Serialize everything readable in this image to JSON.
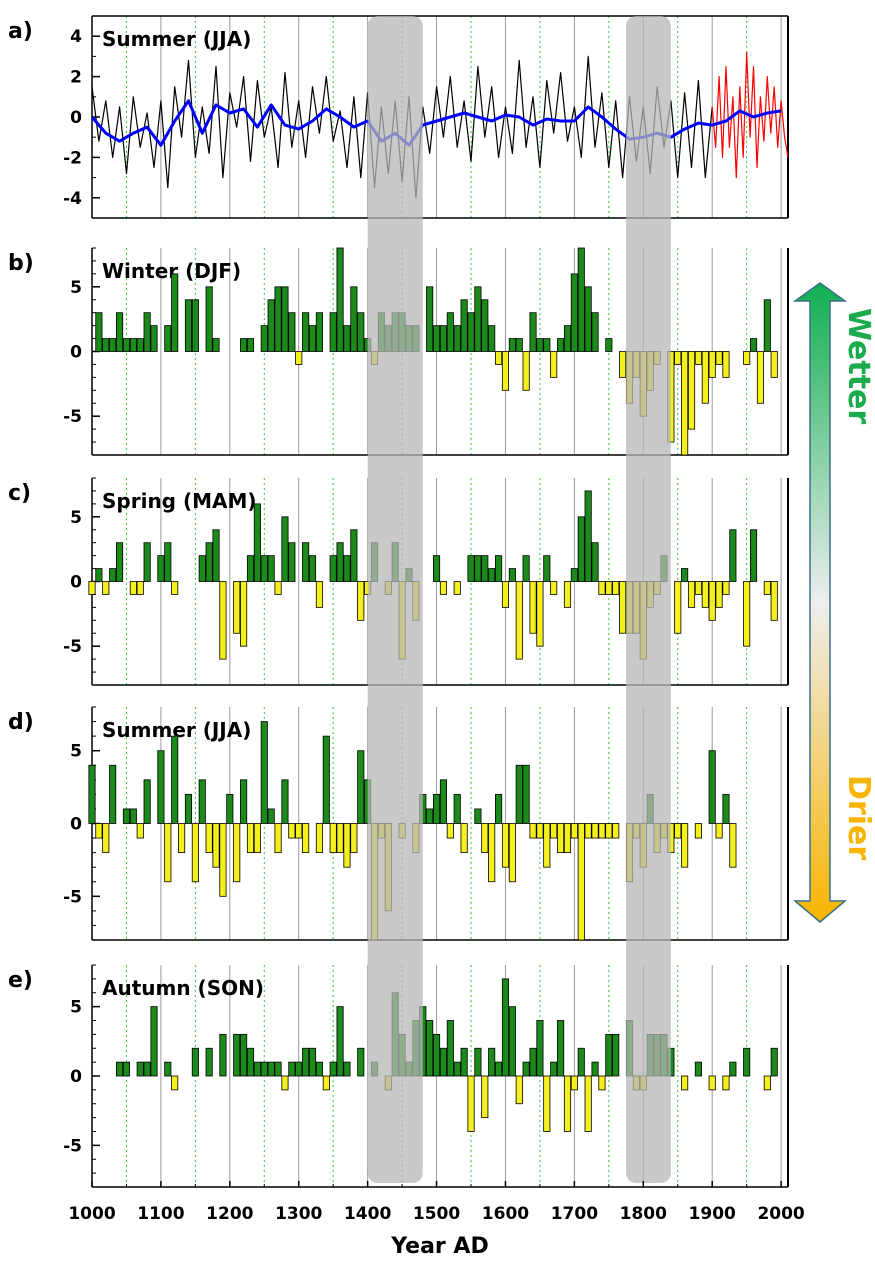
{
  "chart_data": [
    {
      "panel": "a)",
      "title": "Summer (JJA)",
      "type": "line",
      "ylim": [
        -5,
        5
      ],
      "yticks": [
        4,
        2,
        0,
        -2,
        -4
      ],
      "series": [
        {
          "color": "#000000",
          "x": [
            1000,
            1010,
            1020,
            1030,
            1040,
            1050,
            1060,
            1070,
            1080,
            1090,
            1100,
            1110,
            1120,
            1130,
            1140,
            1150,
            1160,
            1170,
            1180,
            1190,
            1200,
            1210,
            1220,
            1230,
            1240,
            1250,
            1260,
            1270,
            1280,
            1290,
            1300,
            1310,
            1320,
            1330,
            1340,
            1350,
            1360,
            1370,
            1380,
            1390,
            1400,
            1410,
            1420,
            1430,
            1440,
            1450,
            1460,
            1470,
            1480,
            1490,
            1500,
            1510,
            1520,
            1530,
            1540,
            1550,
            1560,
            1570,
            1580,
            1590,
            1600,
            1610,
            1620,
            1630,
            1640,
            1650,
            1660,
            1670,
            1680,
            1690,
            1700,
            1710,
            1720,
            1730,
            1740,
            1750,
            1760,
            1770,
            1780,
            1790,
            1800,
            1810,
            1820,
            1830,
            1840,
            1850,
            1860,
            1870,
            1880,
            1890,
            1900
          ],
          "y": [
            1.5,
            -1.2,
            0.8,
            -2.0,
            0.5,
            -2.8,
            1.0,
            -1.5,
            0.2,
            -2.5,
            0.8,
            -3.5,
            1.5,
            -1.0,
            2.8,
            -2.0,
            0.5,
            -1.8,
            2.5,
            -3.0,
            1.2,
            -0.5,
            2.0,
            -2.2,
            1.8,
            -1.0,
            0.5,
            -2.5,
            2.2,
            -1.5,
            0.8,
            -2.0,
            1.5,
            -0.8,
            2.0,
            -1.2,
            0.3,
            -2.5,
            1.0,
            -3.0,
            1.2,
            -3.5,
            0.5,
            -2.8,
            0.8,
            -3.2,
            1.0,
            -4.0,
            0.5,
            -1.8,
            1.5,
            -1.0,
            2.0,
            -1.5,
            0.8,
            -2.2,
            2.5,
            -1.0,
            1.5,
            -2.0,
            0.5,
            -1.8,
            2.8,
            -1.5,
            1.0,
            -2.5,
            1.8,
            -0.8,
            2.2,
            -1.2,
            0.5,
            -2.0,
            3.0,
            -1.5,
            1.2,
            -2.5,
            0.8,
            -3.0,
            1.0,
            -2.2,
            0.5,
            -2.8,
            1.5,
            -1.5,
            0.8,
            -3.0,
            1.2,
            -2.5,
            1.8,
            -3.0,
            0.5
          ]
        },
        {
          "color": "#ff0000",
          "x": [
            1900,
            1905,
            1910,
            1915,
            1920,
            1925,
            1930,
            1935,
            1940,
            1945,
            1950,
            1955,
            1960,
            1965,
            1970,
            1975,
            1980,
            1985,
            1990,
            1995,
            2000,
            2005,
            2010
          ],
          "y": [
            0.5,
            -1.5,
            2.0,
            -2.0,
            2.5,
            -1.5,
            1.0,
            -3.0,
            1.5,
            -2.0,
            3.2,
            -1.0,
            2.5,
            -2.5,
            1.0,
            -1.2,
            2.0,
            -0.8,
            1.5,
            -1.5,
            0.8,
            -1.0,
            -2.0
          ]
        },
        {
          "color": "#0000ff",
          "x": [
            1000,
            1020,
            1040,
            1060,
            1080,
            1100,
            1120,
            1140,
            1160,
            1180,
            1200,
            1220,
            1240,
            1260,
            1280,
            1300,
            1320,
            1340,
            1360,
            1380,
            1400,
            1420,
            1440,
            1460,
            1480,
            1500,
            1520,
            1540,
            1560,
            1580,
            1600,
            1620,
            1640,
            1660,
            1680,
            1700,
            1720,
            1740,
            1760,
            1780,
            1800,
            1820,
            1840,
            1860,
            1880,
            1900,
            1920,
            1940,
            1960,
            1980,
            2000
          ],
          "y": [
            0,
            -0.8,
            -1.2,
            -0.8,
            -0.5,
            -1.4,
            -0.2,
            0.8,
            -0.8,
            0.6,
            0.2,
            0.4,
            -0.5,
            0.6,
            -0.4,
            -0.6,
            -0.2,
            0.4,
            0,
            -0.5,
            -0.2,
            -1.2,
            -0.8,
            -1.4,
            -0.4,
            -0.2,
            0,
            0.2,
            0,
            -0.2,
            0.1,
            0,
            -0.4,
            -0.1,
            -0.2,
            -0.2,
            0.5,
            0,
            -0.6,
            -1.1,
            -1.0,
            -0.8,
            -1.0,
            -0.6,
            -0.3,
            -0.4,
            -0.2,
            0.3,
            0.0,
            0.2,
            0.3
          ]
        }
      ]
    },
    {
      "panel": "b)",
      "title": "Winter (DJF)",
      "type": "bar",
      "ylim": [
        -8,
        8
      ],
      "yticks": [
        5,
        0,
        -5
      ],
      "x": [
        1010,
        1020,
        1030,
        1040,
        1050,
        1060,
        1070,
        1080,
        1090,
        1100,
        1110,
        1120,
        1130,
        1140,
        1150,
        1160,
        1170,
        1180,
        1190,
        1200,
        1210,
        1220,
        1230,
        1240,
        1250,
        1260,
        1270,
        1280,
        1290,
        1300,
        1310,
        1320,
        1330,
        1340,
        1350,
        1360,
        1370,
        1380,
        1390,
        1400,
        1410,
        1420,
        1430,
        1440,
        1450,
        1460,
        1470,
        1480,
        1490,
        1500,
        1510,
        1520,
        1530,
        1540,
        1550,
        1560,
        1570,
        1580,
        1590,
        1600,
        1610,
        1620,
        1630,
        1640,
        1650,
        1660,
        1670,
        1680,
        1690,
        1700,
        1710,
        1720,
        1730,
        1740,
        1750,
        1760,
        1770,
        1780,
        1790,
        1800,
        1810,
        1820,
        1830,
        1840,
        1850,
        1860,
        1870,
        1880,
        1890,
        1900,
        1910,
        1920,
        1930,
        1940,
        1950,
        1960,
        1970,
        1980,
        1990
      ],
      "values": [
        3,
        1,
        1,
        3,
        1,
        1,
        1,
        3,
        2,
        0,
        2,
        6,
        0,
        4,
        4,
        0,
        5,
        1,
        0,
        0,
        0,
        1,
        1,
        0,
        2,
        4,
        5,
        5,
        3,
        -1,
        3,
        2,
        3,
        0,
        3,
        8,
        2,
        5,
        3,
        1,
        -1,
        3,
        2,
        3,
        3,
        2,
        2,
        0,
        5,
        2,
        2,
        3,
        2,
        4,
        3,
        5,
        4,
        2,
        -1,
        -3,
        1,
        1,
        -3,
        3,
        1,
        1,
        -2,
        1,
        2,
        6,
        8,
        5,
        3,
        0,
        1,
        0,
        -2,
        -4,
        -2,
        -5,
        -3,
        -1,
        0,
        -7,
        -1,
        -8,
        -6,
        -1,
        -4,
        -2,
        -1,
        -2,
        0,
        0,
        -1,
        1,
        -4,
        4,
        -2
      ]
    },
    {
      "panel": "c)",
      "title": "Spring (MAM)",
      "type": "bar",
      "ylim": [
        -8,
        8
      ],
      "yticks": [
        5,
        0,
        -5
      ],
      "x": [
        1000,
        1010,
        1020,
        1030,
        1040,
        1050,
        1060,
        1070,
        1080,
        1090,
        1100,
        1110,
        1120,
        1130,
        1140,
        1150,
        1160,
        1170,
        1180,
        1190,
        1200,
        1210,
        1220,
        1230,
        1240,
        1250,
        1260,
        1270,
        1280,
        1290,
        1300,
        1310,
        1320,
        1330,
        1340,
        1350,
        1360,
        1370,
        1380,
        1390,
        1400,
        1410,
        1420,
        1430,
        1440,
        1450,
        1460,
        1470,
        1480,
        1490,
        1500,
        1510,
        1520,
        1530,
        1540,
        1550,
        1560,
        1570,
        1580,
        1590,
        1600,
        1610,
        1620,
        1630,
        1640,
        1650,
        1660,
        1670,
        1680,
        1690,
        1700,
        1710,
        1720,
        1730,
        1740,
        1750,
        1760,
        1770,
        1780,
        1790,
        1800,
        1810,
        1820,
        1830,
        1840,
        1850,
        1860,
        1870,
        1880,
        1890,
        1900,
        1910,
        1920,
        1930,
        1940,
        1950,
        1960,
        1970,
        1980,
        1990
      ],
      "values": [
        -1,
        1,
        -1,
        1,
        3,
        0,
        -1,
        -1,
        3,
        0,
        2,
        3,
        -1,
        0,
        0,
        0,
        2,
        3,
        4,
        -6,
        0,
        -4,
        -5,
        2,
        6,
        2,
        2,
        -1,
        5,
        3,
        0,
        3,
        2,
        -2,
        0,
        2,
        3,
        2,
        4,
        -3,
        -1,
        3,
        0,
        -1,
        3,
        -6,
        1,
        -3,
        0,
        0,
        2,
        -1,
        0,
        -1,
        0,
        2,
        2,
        2,
        1,
        2,
        -2,
        1,
        -6,
        2,
        -4,
        -5,
        2,
        -1,
        0,
        -2,
        1,
        5,
        7,
        3,
        -1,
        -1,
        -1,
        -4,
        -4,
        -4,
        -6,
        -2,
        -1,
        2,
        0,
        -4,
        1,
        -2,
        -1,
        -2,
        -3,
        -2,
        -1,
        4,
        0,
        -5,
        4,
        0,
        -1,
        -3
      ]
    },
    {
      "panel": "d)",
      "title": "Summer (JJA)",
      "type": "bar",
      "ylim": [
        -8,
        8
      ],
      "yticks": [
        5,
        0,
        -5
      ],
      "x": [
        1000,
        1010,
        1020,
        1030,
        1040,
        1050,
        1060,
        1070,
        1080,
        1090,
        1100,
        1110,
        1120,
        1130,
        1140,
        1150,
        1160,
        1170,
        1180,
        1190,
        1200,
        1210,
        1220,
        1230,
        1240,
        1250,
        1260,
        1270,
        1280,
        1290,
        1300,
        1310,
        1320,
        1330,
        1340,
        1350,
        1360,
        1370,
        1380,
        1390,
        1400,
        1410,
        1420,
        1430,
        1440,
        1450,
        1460,
        1470,
        1480,
        1490,
        1500,
        1510,
        1520,
        1530,
        1540,
        1550,
        1560,
        1570,
        1580,
        1590,
        1600,
        1610,
        1620,
        1630,
        1640,
        1650,
        1660,
        1670,
        1680,
        1690,
        1700,
        1710,
        1720,
        1730,
        1740,
        1750,
        1760,
        1770,
        1780,
        1790,
        1800,
        1810,
        1820,
        1830,
        1840,
        1850,
        1860,
        1870,
        1880,
        1890,
        1900,
        1910,
        1920,
        1930,
        1940,
        1950,
        1960,
        1970,
        1980,
        1990
      ],
      "values": [
        4,
        -1,
        -2,
        4,
        0,
        1,
        1,
        -1,
        3,
        0,
        5,
        -4,
        6,
        -2,
        2,
        -4,
        3,
        -2,
        -3,
        -5,
        2,
        -4,
        3,
        -2,
        -2,
        7,
        1,
        -2,
        3,
        -1,
        -1,
        -2,
        0,
        -2,
        6,
        -2,
        -2,
        -3,
        -2,
        5,
        3,
        -8,
        -1,
        -6,
        0,
        -1,
        0,
        -2,
        2,
        1,
        2,
        3,
        -1,
        2,
        -2,
        0,
        1,
        -2,
        -4,
        2,
        -3,
        -4,
        4,
        4,
        -1,
        -1,
        -3,
        -1,
        -2,
        -2,
        -1,
        -8,
        -1,
        -1,
        -1,
        -1,
        -1,
        0,
        -4,
        -1,
        -3,
        2,
        -2,
        -1,
        -2,
        -1,
        -3,
        0,
        -1,
        0,
        5,
        -1,
        2,
        -3,
        0,
        0,
        0,
        0,
        0,
        0
      ]
    },
    {
      "panel": "e)",
      "title": "Autumn (SON)",
      "type": "bar",
      "ylim": [
        -8,
        8
      ],
      "yticks": [
        5,
        0,
        -5
      ],
      "x": [
        1040,
        1050,
        1060,
        1070,
        1080,
        1090,
        1100,
        1110,
        1120,
        1130,
        1140,
        1150,
        1160,
        1170,
        1180,
        1190,
        1200,
        1210,
        1220,
        1230,
        1240,
        1250,
        1260,
        1270,
        1280,
        1290,
        1300,
        1310,
        1320,
        1330,
        1340,
        1350,
        1360,
        1370,
        1380,
        1390,
        1400,
        1410,
        1420,
        1430,
        1440,
        1450,
        1460,
        1470,
        1480,
        1490,
        1500,
        1510,
        1520,
        1530,
        1540,
        1550,
        1560,
        1570,
        1580,
        1590,
        1600,
        1610,
        1620,
        1630,
        1640,
        1650,
        1660,
        1670,
        1680,
        1690,
        1700,
        1710,
        1720,
        1730,
        1740,
        1750,
        1760,
        1770,
        1780,
        1790,
        1800,
        1810,
        1820,
        1830,
        1840,
        1850,
        1860,
        1870,
        1880,
        1890,
        1900,
        1910,
        1920,
        1930,
        1940,
        1950,
        1960,
        1970,
        1980,
        1990
      ],
      "values": [
        1,
        1,
        0,
        1,
        1,
        5,
        0,
        1,
        -1,
        0,
        0,
        2,
        0,
        2,
        0,
        3,
        0,
        3,
        3,
        2,
        1,
        1,
        1,
        1,
        -1,
        1,
        1,
        2,
        2,
        1,
        -1,
        1,
        5,
        1,
        0,
        2,
        0,
        1,
        0,
        -1,
        6,
        3,
        1,
        4,
        5,
        4,
        3,
        2,
        4,
        1,
        2,
        -4,
        2,
        -3,
        2,
        1,
        7,
        5,
        -2,
        1,
        2,
        4,
        -4,
        1,
        4,
        -4,
        -1,
        2,
        -4,
        1,
        -1,
        3,
        3,
        0,
        4,
        -1,
        -1,
        3,
        3,
        3,
        2,
        0,
        -1,
        0,
        1,
        0,
        -1,
        0,
        -1,
        1,
        0,
        2,
        0,
        0,
        -1,
        2
      ]
    }
  ],
  "xaxis": {
    "label": "Year AD",
    "ticks": [
      1000,
      1100,
      1200,
      1300,
      1400,
      1500,
      1600,
      1700,
      1800,
      1900,
      2000
    ],
    "range": [
      1000,
      2010
    ]
  },
  "shaded_periods": [
    [
      1400,
      1480
    ],
    [
      1775,
      1840
    ]
  ],
  "arrow": {
    "top_label": "Wetter",
    "bottom_label": "Drier",
    "top_color": "#1aab4d",
    "bottom_color": "#f7b500"
  },
  "colors": {
    "positive_bar": "#1b8a1b",
    "negative_bar": "#f4f01e",
    "shade": "#b7b7b7",
    "dotted_grid": "#33cc33",
    "solid_grid": "#9a9a9a"
  }
}
